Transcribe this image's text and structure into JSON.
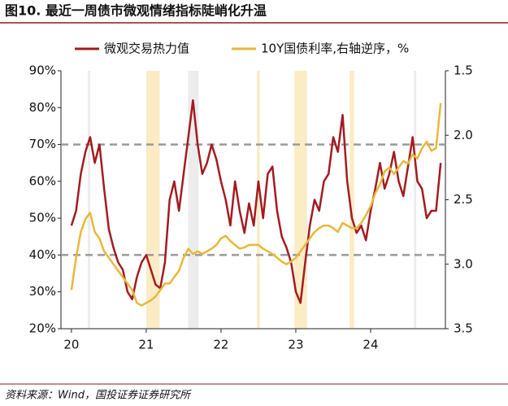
{
  "chart_data": {
    "type": "line",
    "title": "图10. 最近一周债市微观情绪指标陡峭化升温",
    "source": "资料来源：Wind，国投证券证券研究所",
    "x": [
      2020,
      2020.0625,
      2020.125,
      2020.1875,
      2020.25,
      2020.3125,
      2020.375,
      2020.4375,
      2020.5,
      2020.5625,
      2020.625,
      2020.6875,
      2020.75,
      2020.8125,
      2020.875,
      2020.9375,
      2021,
      2021.0625,
      2021.125,
      2021.1875,
      2021.25,
      2021.3125,
      2021.375,
      2021.4375,
      2021.5,
      2021.5625,
      2021.625,
      2021.6875,
      2021.75,
      2021.8125,
      2021.875,
      2021.9375,
      2022,
      2022.0625,
      2022.125,
      2022.1875,
      2022.25,
      2022.3125,
      2022.375,
      2022.4375,
      2022.5,
      2022.5625,
      2022.625,
      2022.6875,
      2022.75,
      2022.8125,
      2022.875,
      2022.9375,
      2023,
      2023.0625,
      2023.125,
      2023.1875,
      2023.25,
      2023.3125,
      2023.375,
      2023.4375,
      2023.5,
      2023.5625,
      2023.625,
      2023.6875,
      2023.75,
      2023.8125,
      2023.875,
      2023.9375,
      2024,
      2024.0625,
      2024.125,
      2024.1875,
      2024.25,
      2024.3125,
      2024.375,
      2024.4375,
      2024.5,
      2024.5625,
      2024.625,
      2024.6875,
      2024.75,
      2024.8125,
      2024.875,
      2024.9375
    ],
    "series": [
      {
        "name": "微观交易热力值",
        "color": "#a31b20",
        "axis": "y",
        "values": [
          48,
          52,
          62,
          68,
          72,
          65,
          70,
          58,
          47,
          42,
          38,
          36,
          30,
          28,
          34,
          38,
          40,
          36,
          32,
          31,
          38,
          55,
          60,
          52,
          62,
          72,
          82,
          70,
          62,
          65,
          70,
          66,
          60,
          55,
          48,
          60,
          52,
          46,
          54,
          48,
          60,
          50,
          62,
          64,
          52,
          45,
          42,
          38,
          30,
          27,
          38,
          48,
          55,
          52,
          60,
          62,
          72,
          68,
          78,
          60,
          50,
          46,
          48,
          44,
          52,
          58,
          65,
          58,
          62,
          68,
          60,
          56,
          64,
          72,
          60,
          58,
          50,
          52,
          52,
          65
        ]
      },
      {
        "name": "10Y国债利率,右轴逆序，%",
        "color": "#e8b83a",
        "axis": "y2",
        "values": [
          3.2,
          2.95,
          2.75,
          2.65,
          2.6,
          2.75,
          2.8,
          2.9,
          2.95,
          3.0,
          3.05,
          3.1,
          3.15,
          3.2,
          3.3,
          3.32,
          3.3,
          3.28,
          3.25,
          3.2,
          3.15,
          3.15,
          3.1,
          3.05,
          2.95,
          2.88,
          2.92,
          2.9,
          2.92,
          2.9,
          2.88,
          2.85,
          2.8,
          2.78,
          2.82,
          2.85,
          2.88,
          2.87,
          2.85,
          2.85,
          2.85,
          2.88,
          2.9,
          2.92,
          2.95,
          2.98,
          3.0,
          2.98,
          2.95,
          2.9,
          2.85,
          2.8,
          2.75,
          2.72,
          2.7,
          2.7,
          2.72,
          2.75,
          2.68,
          2.7,
          2.72,
          2.72,
          2.68,
          2.62,
          2.55,
          2.45,
          2.38,
          2.28,
          2.25,
          2.3,
          2.25,
          2.2,
          2.22,
          2.15,
          2.18,
          2.1,
          2.05,
          2.12,
          2.1,
          1.75
        ]
      }
    ],
    "xlim": [
      2019.86,
      2025.0
    ],
    "xticks": [
      {
        "value": 2020,
        "label": "20"
      },
      {
        "value": 2021,
        "label": "21"
      },
      {
        "value": 2022,
        "label": "22"
      },
      {
        "value": 2023,
        "label": "23"
      },
      {
        "value": 2024,
        "label": "24"
      }
    ],
    "ylim": [
      20,
      90
    ],
    "yticks": [
      {
        "value": 20,
        "label": "20%"
      },
      {
        "value": 30,
        "label": "30%"
      },
      {
        "value": 40,
        "label": "40%"
      },
      {
        "value": 50,
        "label": "50%"
      },
      {
        "value": 60,
        "label": "60%"
      },
      {
        "value": 70,
        "label": "70%"
      },
      {
        "value": 80,
        "label": "80%"
      },
      {
        "value": 90,
        "label": "90%"
      }
    ],
    "y2lim": [
      1.5,
      3.5
    ],
    "y2_reversed": true,
    "y2ticks": [
      1.5,
      {
        "value": 2,
        "label": "2.0"
      },
      2.5,
      {
        "value": 3,
        "label": "3.0"
      },
      3.5
    ],
    "reference_lines": [
      70,
      40
    ],
    "shaded_periods": [
      {
        "start": 2020.22,
        "end": 2020.25,
        "color": "#ececec"
      },
      {
        "start": 2021.0,
        "end": 2021.18,
        "color": "#fbecc6"
      },
      {
        "start": 2021.56,
        "end": 2021.7,
        "color": "#ececec"
      },
      {
        "start": 2022.48,
        "end": 2022.52,
        "color": "#fbecc6"
      },
      {
        "start": 2022.98,
        "end": 2023.15,
        "color": "#fbecc6"
      },
      {
        "start": 2023.72,
        "end": 2023.78,
        "color": "#fbecc6"
      },
      {
        "start": 2024.58,
        "end": 2024.61,
        "color": "#ececec"
      }
    ],
    "legend": "top"
  }
}
